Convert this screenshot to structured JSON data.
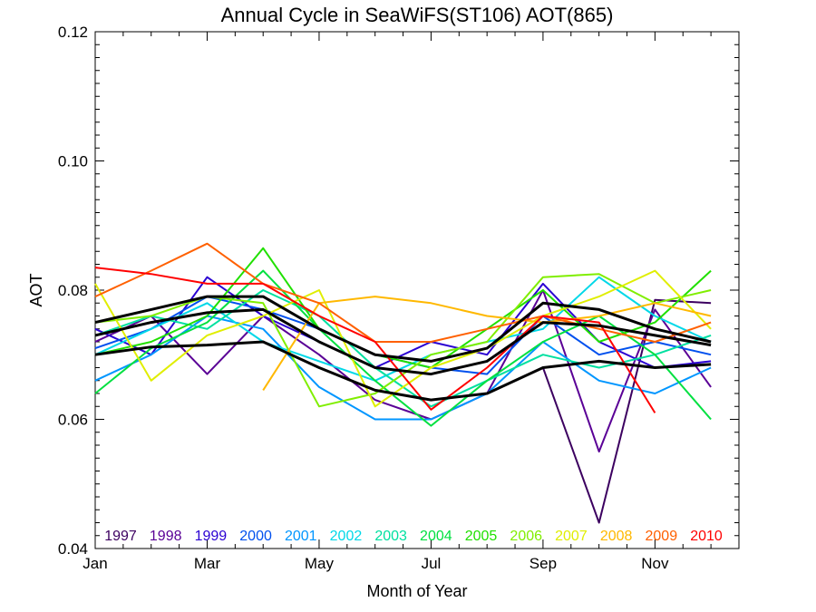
{
  "chart_data": {
    "type": "line",
    "title": "Annual Cycle in SeaWiFS(ST106) AOT(865)",
    "xlabel": "Month of Year",
    "ylabel": "AOT",
    "xlim": [
      1,
      12.5
    ],
    "ylim": [
      0.04,
      0.12
    ],
    "x_tick_values": [
      1,
      3,
      5,
      7,
      9,
      11
    ],
    "x_tick_labels": [
      "Jan",
      "Mar",
      "May",
      "Jul",
      "Sep",
      "Nov"
    ],
    "y_tick_values": [
      0.04,
      0.06,
      0.08,
      0.1,
      0.12
    ],
    "y_tick_labels": [
      "0.04",
      "0.06",
      "0.08",
      "0.10",
      "0.12"
    ],
    "grid": false,
    "legend_position": "bottom",
    "months": [
      1,
      2,
      3,
      4,
      5,
      6,
      7,
      8,
      9,
      10,
      11,
      12
    ],
    "series": [
      {
        "name": "1997",
        "color": "#3c0060",
        "values": [
          null,
          null,
          null,
          null,
          null,
          null,
          null,
          null,
          0.068,
          0.044,
          0.0785,
          0.078
        ]
      },
      {
        "name": "1998",
        "color": "#5a0096",
        "values": [
          0.072,
          0.076,
          0.067,
          0.076,
          0.07,
          0.063,
          0.06,
          0.064,
          0.08,
          0.055,
          0.077,
          0.065
        ]
      },
      {
        "name": "1999",
        "color": "#2a00d2",
        "values": [
          0.074,
          0.07,
          0.082,
          0.076,
          0.072,
          0.068,
          0.072,
          0.07,
          0.081,
          0.072,
          0.068,
          0.069
        ]
      },
      {
        "name": "2000",
        "color": "#0050ee",
        "values": [
          0.071,
          0.074,
          0.079,
          0.077,
          0.074,
          0.07,
          0.068,
          0.067,
          0.076,
          0.07,
          0.072,
          0.07
        ]
      },
      {
        "name": "2001",
        "color": "#0096ff",
        "values": [
          0.066,
          0.07,
          0.076,
          0.074,
          0.065,
          0.06,
          0.06,
          0.064,
          0.072,
          0.066,
          0.064,
          0.068
        ]
      },
      {
        "name": "2002",
        "color": "#00d8e8",
        "values": [
          0.07,
          0.074,
          0.078,
          0.072,
          0.069,
          0.066,
          0.07,
          0.072,
          0.074,
          0.082,
          0.076,
          0.072
        ]
      },
      {
        "name": "2003",
        "color": "#00e0a0",
        "values": [
          0.073,
          0.076,
          0.074,
          0.08,
          0.076,
          0.068,
          0.062,
          0.066,
          0.07,
          0.068,
          0.07,
          0.073
        ]
      },
      {
        "name": "2004",
        "color": "#00e040",
        "values": [
          0.064,
          0.071,
          0.075,
          0.083,
          0.074,
          0.066,
          0.059,
          0.066,
          0.072,
          0.076,
          0.07,
          0.06
        ]
      },
      {
        "name": "2005",
        "color": "#20e000",
        "values": [
          0.07,
          0.072,
          0.076,
          0.0865,
          0.074,
          0.07,
          0.068,
          0.074,
          0.08,
          0.072,
          0.075,
          0.083
        ]
      },
      {
        "name": "2006",
        "color": "#80ee00",
        "values": [
          0.075,
          0.076,
          0.079,
          0.078,
          0.062,
          0.064,
          0.07,
          0.072,
          0.082,
          0.0825,
          0.078,
          0.08
        ]
      },
      {
        "name": "2007",
        "color": "#e0ee00",
        "values": [
          0.081,
          0.066,
          0.073,
          0.076,
          0.08,
          0.062,
          0.068,
          0.071,
          0.076,
          0.079,
          0.083,
          0.074
        ]
      },
      {
        "name": "2008",
        "color": "#ffb800",
        "values": [
          null,
          null,
          null,
          0.0645,
          0.078,
          0.079,
          0.078,
          0.076,
          0.075,
          0.076,
          0.078,
          0.076
        ]
      },
      {
        "name": "2009",
        "color": "#ff6000",
        "values": [
          0.079,
          0.083,
          0.0872,
          0.081,
          0.078,
          0.072,
          0.072,
          0.074,
          0.076,
          0.074,
          0.072,
          0.075
        ]
      },
      {
        "name": "2010",
        "color": "#ff0000",
        "values": [
          0.0835,
          0.0825,
          0.081,
          0.081,
          0.076,
          0.072,
          0.0615,
          0.068,
          0.076,
          0.075,
          0.061,
          null
        ]
      }
    ],
    "reference_lines": [
      {
        "color": "#000000",
        "values": [
          0.075,
          0.077,
          0.079,
          0.079,
          0.074,
          0.07,
          0.069,
          0.071,
          0.078,
          0.077,
          0.074,
          0.072
        ]
      },
      {
        "color": "#000000",
        "values": [
          0.073,
          0.075,
          0.0765,
          0.077,
          0.072,
          0.068,
          0.067,
          0.069,
          0.075,
          0.0745,
          0.073,
          0.0715
        ]
      },
      {
        "color": "#000000",
        "values": [
          0.07,
          0.0712,
          0.0715,
          0.072,
          0.068,
          0.0645,
          0.063,
          0.064,
          0.068,
          0.069,
          0.068,
          0.0685
        ]
      }
    ]
  }
}
